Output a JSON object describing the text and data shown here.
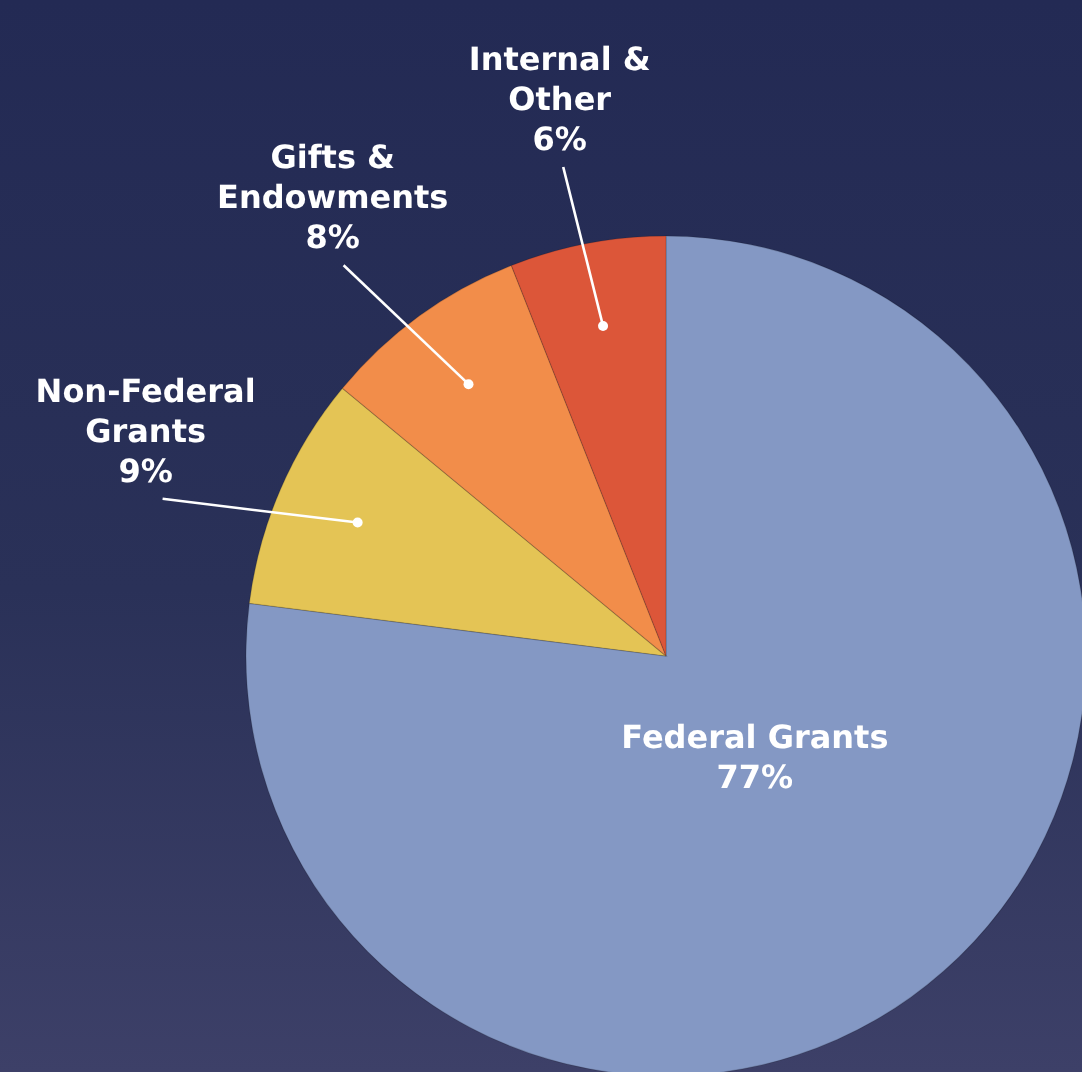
{
  "chart_data": {
    "type": "pie",
    "categories": [
      "Federal Grants",
      "Non-Federal Grants",
      "Gifts & Endowments",
      "Internal & Other"
    ],
    "values": [
      77,
      9,
      8,
      6
    ],
    "value_labels": [
      "77%",
      "9%",
      "8%",
      "6%"
    ],
    "colors": [
      "#8498c4",
      "#e4c455",
      "#f28d4a",
      "#dc5639"
    ]
  }
}
